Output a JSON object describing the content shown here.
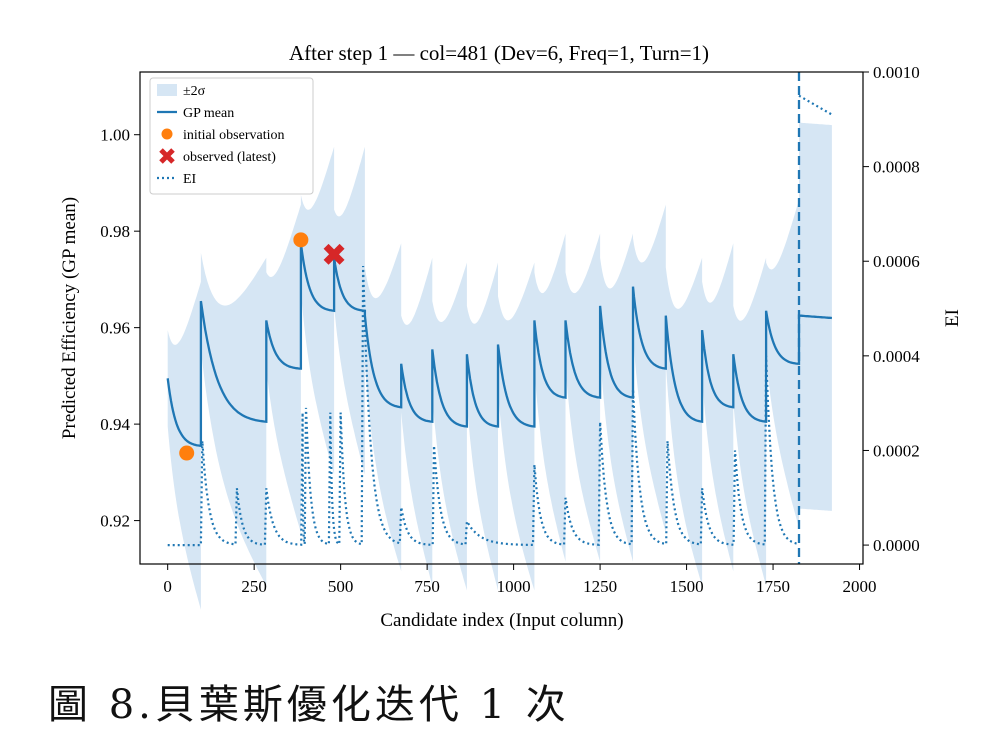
{
  "caption": "圖 8.貝葉斯優化迭代 1 次",
  "chart_data": {
    "type": "line",
    "title": "After step 1 — col=481 (Dev=6, Freq=1, Turn=1)",
    "xlabel": "Candidate index (Input column)",
    "ylabel_left": "Predicted Efficiency (GP mean)",
    "ylabel_right": "EI",
    "xlim": [
      -80,
      2010
    ],
    "ylim_left": [
      0.911,
      1.013
    ],
    "ylim_right": [
      -4e-05,
      0.001
    ],
    "x_ticks": [
      0,
      250,
      500,
      750,
      1000,
      1250,
      1500,
      1750,
      2000
    ],
    "y_left_ticks": [
      0.92,
      0.94,
      0.96,
      0.98,
      1.0
    ],
    "y_right_ticks": [
      0.0,
      0.0002,
      0.0004,
      0.0006,
      0.0008,
      0.001
    ],
    "y_left_tick_labels": [
      "0.92",
      "0.94",
      "0.96",
      "0.98",
      "1.00"
    ],
    "y_right_tick_labels": [
      "0.0000",
      "0.0002",
      "0.0004",
      "0.0006",
      "0.0008",
      "0.0010"
    ],
    "vline_x": 1825,
    "legend_placement": "upper-left",
    "legend": [
      {
        "label": "±2σ",
        "kind": "band"
      },
      {
        "label": "GP mean",
        "kind": "line"
      },
      {
        "label": "initial observation",
        "kind": "dot"
      },
      {
        "label": "observed (latest)",
        "kind": "cross"
      },
      {
        "label": "EI",
        "kind": "dotted"
      }
    ],
    "colors": {
      "mean": "#1f77b4",
      "band": "#d6e6f4",
      "initial": "#ff7f0e",
      "latest": "#d62728"
    },
    "segments": [
      {
        "x0": 0,
        "x1": 96,
        "start": 0.9495,
        "end": 0.9355
      },
      {
        "x0": 96,
        "x1": 285,
        "start": 0.9655,
        "end": 0.9405
      },
      {
        "x0": 285,
        "x1": 385,
        "start": 0.9615,
        "end": 0.9515
      },
      {
        "x0": 385,
        "x1": 481,
        "start": 0.9775,
        "end": 0.9635
      },
      {
        "x0": 481,
        "x1": 570,
        "start": 0.9745,
        "end": 0.9635
      },
      {
        "x0": 570,
        "x1": 675,
        "start": 0.9625,
        "end": 0.9435
      },
      {
        "x0": 675,
        "x1": 765,
        "start": 0.9525,
        "end": 0.9405
      },
      {
        "x0": 765,
        "x1": 865,
        "start": 0.9555,
        "end": 0.9395
      },
      {
        "x0": 865,
        "x1": 955,
        "start": 0.9545,
        "end": 0.9395
      },
      {
        "x0": 955,
        "x1": 1060,
        "start": 0.9565,
        "end": 0.9395
      },
      {
        "x0": 1060,
        "x1": 1150,
        "start": 0.9615,
        "end": 0.9455
      },
      {
        "x0": 1150,
        "x1": 1250,
        "start": 0.9615,
        "end": 0.9455
      },
      {
        "x0": 1250,
        "x1": 1345,
        "start": 0.9645,
        "end": 0.9455
      },
      {
        "x0": 1345,
        "x1": 1440,
        "start": 0.9685,
        "end": 0.9515
      },
      {
        "x0": 1440,
        "x1": 1545,
        "start": 0.9625,
        "end": 0.9405
      },
      {
        "x0": 1545,
        "x1": 1635,
        "start": 0.9595,
        "end": 0.9435
      },
      {
        "x0": 1635,
        "x1": 1730,
        "start": 0.9545,
        "end": 0.9405
      },
      {
        "x0": 1730,
        "x1": 1825,
        "start": 0.9635,
        "end": 0.9525
      },
      {
        "x0": 1825,
        "x1": 1920,
        "start": 0.9625,
        "end": 0.962
      }
    ],
    "initial_observations": [
      {
        "x": 55,
        "y": 0.934
      },
      {
        "x": 385,
        "y": 0.9782
      }
    ],
    "latest_observation": {
      "x": 481,
      "y": 0.9752
    },
    "ei_peaks": [
      {
        "x": 100,
        "y": 0.00022
      },
      {
        "x": 200,
        "y": 0.00012
      },
      {
        "x": 285,
        "y": 0.00012
      },
      {
        "x": 390,
        "y": 0.00028
      },
      {
        "x": 400,
        "y": 0.00029
      },
      {
        "x": 470,
        "y": 0.00028
      },
      {
        "x": 500,
        "y": 0.00028
      },
      {
        "x": 565,
        "y": 0.00059
      },
      {
        "x": 675,
        "y": 8e-05
      },
      {
        "x": 770,
        "y": 0.00021
      },
      {
        "x": 865,
        "y": 5e-05
      },
      {
        "x": 1060,
        "y": 0.00017
      },
      {
        "x": 1150,
        "y": 0.0001
      },
      {
        "x": 1250,
        "y": 0.00026
      },
      {
        "x": 1345,
        "y": 0.00033
      },
      {
        "x": 1445,
        "y": 0.00022
      },
      {
        "x": 1545,
        "y": 0.00012
      },
      {
        "x": 1640,
        "y": 0.0002
      },
      {
        "x": 1730,
        "y": 0.0004
      }
    ],
    "ei_tail": {
      "x": [
        1825,
        1920
      ],
      "y": [
        0.00095,
        0.00091
      ]
    }
  }
}
